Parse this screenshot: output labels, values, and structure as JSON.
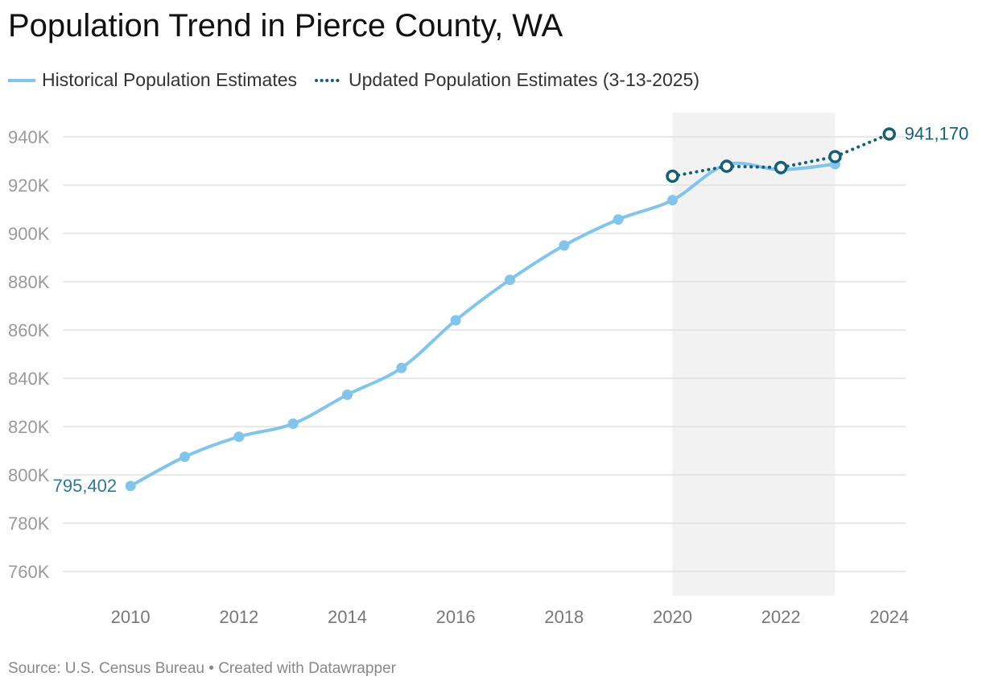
{
  "title": "Population Trend in Pierce County, WA",
  "footer": {
    "source": "Source: U.S. Census Bureau",
    "separator": " • ",
    "credit": "Created with Datawrapper"
  },
  "colors": {
    "historical": "#82c4ea",
    "updated": "#175e76",
    "label_start": "#2f7896",
    "label_end": "#175e76",
    "highlight": "#f2f2f2",
    "grid": "#e1e1e1",
    "tick": "#999999"
  },
  "chart_data": {
    "type": "line",
    "title": "Population Trend in Pierce County, WA",
    "xlabel": "",
    "ylabel": "",
    "xlim": [
      2008.75,
      2024.3
    ],
    "ylim": [
      750000,
      950000
    ],
    "grid": true,
    "legend_position": "top-left",
    "x_ticks": [
      2010,
      2012,
      2014,
      2016,
      2018,
      2020,
      2022,
      2024
    ],
    "y_ticks": [
      760000,
      780000,
      800000,
      820000,
      840000,
      860000,
      880000,
      900000,
      920000,
      940000
    ],
    "y_tick_labels": [
      "760K",
      "780K",
      "800K",
      "820K",
      "840K",
      "860K",
      "880K",
      "900K",
      "920K",
      "940K"
    ],
    "highlight_range": [
      2020,
      2023
    ],
    "series": [
      {
        "name": "Historical Population Estimates",
        "style": "solid",
        "marker": "filled",
        "x": [
          2010,
          2011,
          2012,
          2013,
          2014,
          2015,
          2016,
          2017,
          2018,
          2019,
          2020,
          2021,
          2022,
          2023
        ],
        "values": [
          795402,
          807500,
          815800,
          821200,
          833200,
          844300,
          864000,
          880800,
          895000,
          905800,
          913800,
          928500,
          926400,
          928700
        ]
      },
      {
        "name": "Updated Population Estimates (3-13-2025)",
        "style": "dotted",
        "marker": "hollow",
        "x": [
          2020,
          2021,
          2022,
          2023,
          2024
        ],
        "values": [
          923700,
          927800,
          927300,
          931800,
          941170
        ]
      }
    ],
    "annotations": [
      {
        "text": "795,402",
        "x": 2010,
        "y": 795402,
        "placement": "left"
      },
      {
        "text": "941,170",
        "x": 2024,
        "y": 941170,
        "placement": "right"
      }
    ]
  }
}
